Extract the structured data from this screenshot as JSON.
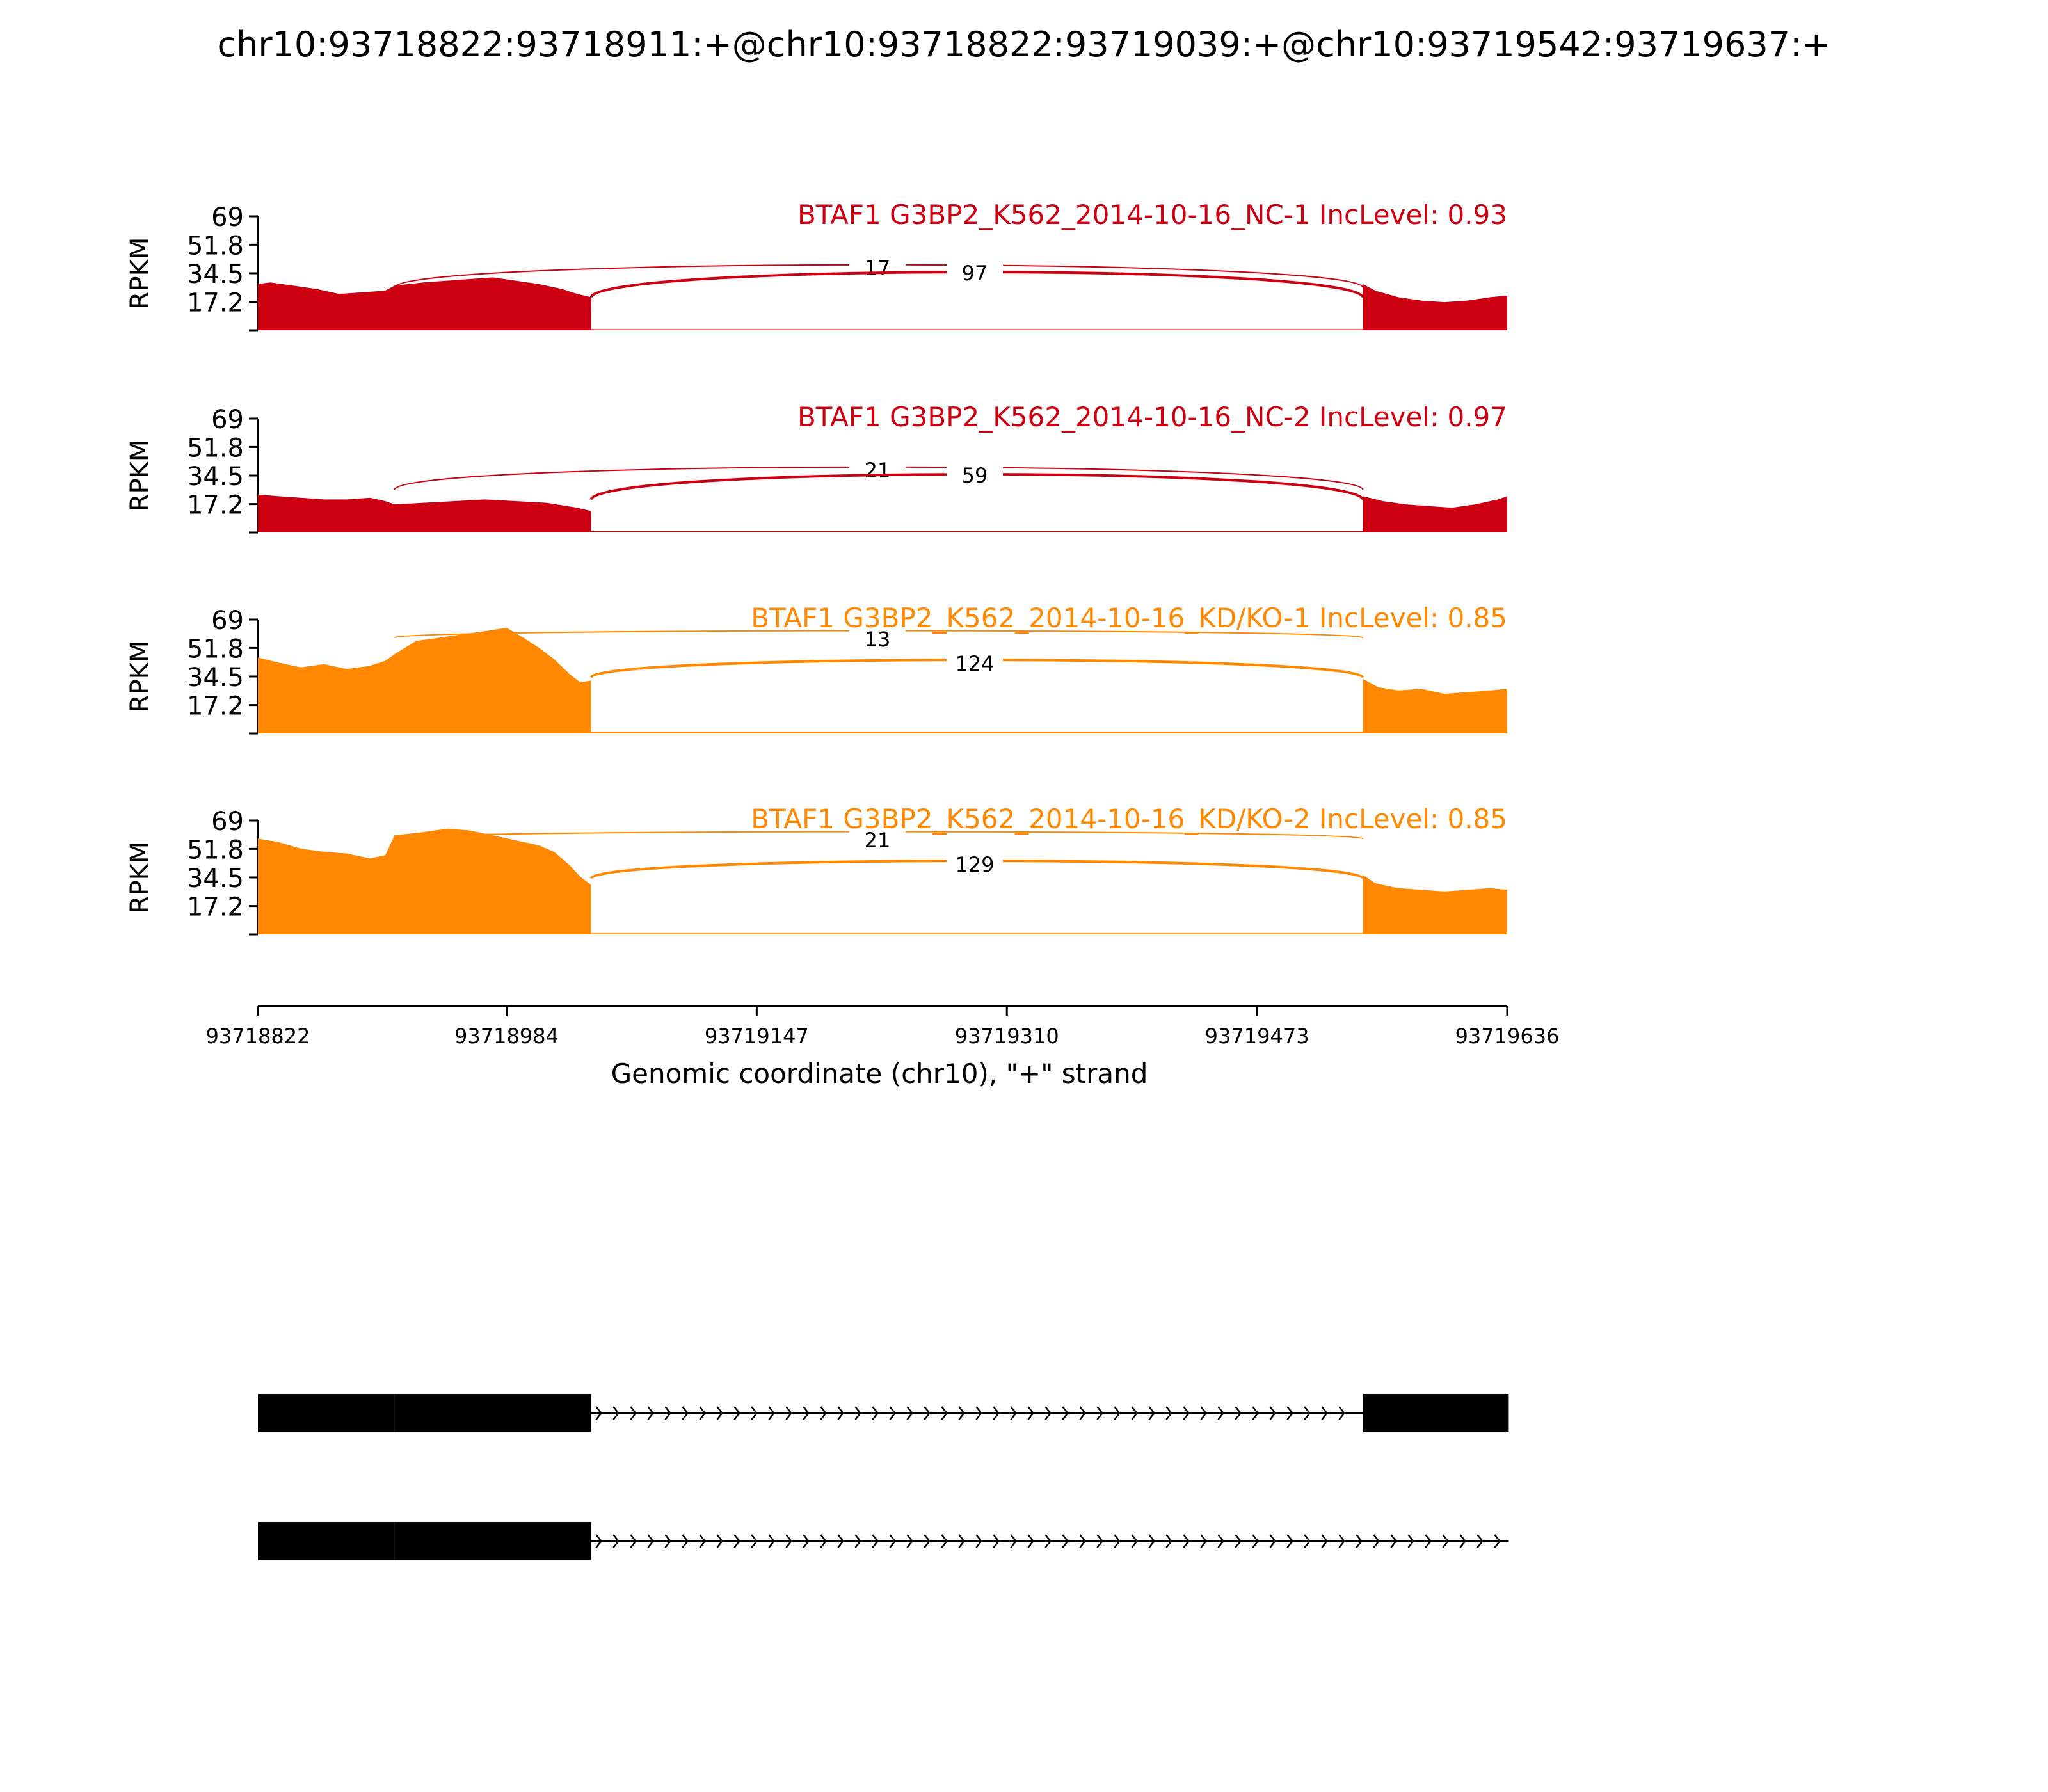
{
  "title": "chr10:93718822:93718911:+@chr10:93718822:93719039:+@chr10:93719542:93719637:+",
  "colors": {
    "nc": "#cc0011",
    "kd": "#ff8800",
    "text_default": "#000000",
    "gene_model": "#000000"
  },
  "chart_data": {
    "type": "area",
    "xlabel": "Genomic coordinate (chr10), \"+\" strand",
    "ylabel": "RPKM",
    "xlim": [
      93718822,
      93719636
    ],
    "xticks": [
      "93718822",
      "93718984",
      "93719147",
      "93719310",
      "93719473",
      "93719636"
    ],
    "ylim": [
      0,
      69
    ],
    "yticks": [
      "69",
      "51.8",
      "34.5",
      "17.2"
    ],
    "grid": false,
    "exons": [
      [
        93718822,
        93718911
      ],
      [
        93718911,
        93719039
      ],
      [
        93719542,
        93719637
      ]
    ],
    "panels": [
      {
        "label": "BTAF1 G3BP2_K562_2014-10-16_NC-1 IncLevel: 0.93",
        "color_key": "nc",
        "junctions": [
          {
            "from": 93718911,
            "to": 93719542,
            "count": 17
          },
          {
            "from": 93719039,
            "to": 93719542,
            "count": 97
          }
        ],
        "coverage": {
          "exon1": [
            [
              93718822,
              28
            ],
            [
              93718830,
              29
            ],
            [
              93718845,
              27
            ],
            [
              93718860,
              25
            ],
            [
              93718875,
              22
            ],
            [
              93718890,
              23
            ],
            [
              93718905,
              24
            ],
            [
              93718911,
              27
            ],
            [
              93718930,
              29
            ],
            [
              93718945,
              30
            ],
            [
              93718960,
              31
            ],
            [
              93718975,
              32
            ],
            [
              93718990,
              30
            ],
            [
              93719005,
              28
            ],
            [
              93719020,
              25
            ],
            [
              93719030,
              22
            ],
            [
              93719039,
              20
            ]
          ],
          "exon3": [
            [
              93719542,
              28
            ],
            [
              93719550,
              24
            ],
            [
              93719565,
              20
            ],
            [
              93719580,
              18
            ],
            [
              93719595,
              17
            ],
            [
              93719610,
              18
            ],
            [
              93719625,
              20
            ],
            [
              93719636,
              21
            ]
          ],
          "intron_level": 0.6
        }
      },
      {
        "label": "BTAF1 G3BP2_K562_2014-10-16_NC-2 IncLevel: 0.97",
        "color_key": "nc",
        "junctions": [
          {
            "from": 93718911,
            "to": 93719542,
            "count": 21
          },
          {
            "from": 93719039,
            "to": 93719542,
            "count": 59
          }
        ],
        "coverage": {
          "exon1": [
            [
              93718822,
              23
            ],
            [
              93718835,
              22
            ],
            [
              93718850,
              21
            ],
            [
              93718865,
              20
            ],
            [
              93718880,
              20
            ],
            [
              93718895,
              21
            ],
            [
              93718905,
              19
            ],
            [
              93718911,
              17
            ],
            [
              93718930,
              18
            ],
            [
              93718950,
              19
            ],
            [
              93718970,
              20
            ],
            [
              93718990,
              19
            ],
            [
              93719010,
              18
            ],
            [
              93719030,
              15
            ],
            [
              93719039,
              13
            ]
          ],
          "exon3": [
            [
              93719542,
              22
            ],
            [
              93719555,
              19
            ],
            [
              93719570,
              17
            ],
            [
              93719585,
              16
            ],
            [
              93719600,
              15
            ],
            [
              93719615,
              17
            ],
            [
              93719630,
              20
            ],
            [
              93719636,
              22
            ]
          ],
          "intron_level": 0.8
        }
      },
      {
        "label": "BTAF1 G3BP2_K562_2014-10-16_KD/KO-1 IncLevel: 0.85",
        "color_key": "kd",
        "junctions": [
          {
            "from": 93718911,
            "to": 93719542,
            "count": 13
          },
          {
            "from": 93719039,
            "to": 93719542,
            "count": 124
          }
        ],
        "coverage": {
          "exon1": [
            [
              93718822,
              46
            ],
            [
              93718835,
              43
            ],
            [
              93718850,
              40
            ],
            [
              93718865,
              42
            ],
            [
              93718880,
              39
            ],
            [
              93718895,
              41
            ],
            [
              93718905,
              44
            ],
            [
              93718911,
              48
            ],
            [
              93718925,
              56
            ],
            [
              93718940,
              58
            ],
            [
              93718955,
              60
            ],
            [
              93718970,
              62
            ],
            [
              93718984,
              64
            ],
            [
              93718995,
              58
            ],
            [
              93719005,
              52
            ],
            [
              93719015,
              45
            ],
            [
              93719025,
              36
            ],
            [
              93719032,
              31
            ],
            [
              93719039,
              32
            ]
          ],
          "exon3": [
            [
              93719542,
              33
            ],
            [
              93719552,
              28
            ],
            [
              93719565,
              26
            ],
            [
              93719580,
              27
            ],
            [
              93719595,
              24
            ],
            [
              93719610,
              25
            ],
            [
              93719625,
              26
            ],
            [
              93719636,
              27
            ]
          ],
          "intron_level": 0.9
        }
      },
      {
        "label": "BTAF1 G3BP2_K562_2014-10-16_KD/KO-2 IncLevel: 0.85",
        "color_key": "kd",
        "junctions": [
          {
            "from": 93718911,
            "to": 93719542,
            "count": 21
          },
          {
            "from": 93719039,
            "to": 93719542,
            "count": 129
          }
        ],
        "coverage": {
          "exon1": [
            [
              93718822,
              58
            ],
            [
              93718835,
              56
            ],
            [
              93718850,
              52
            ],
            [
              93718865,
              50
            ],
            [
              93718880,
              49
            ],
            [
              93718895,
              46
            ],
            [
              93718905,
              48
            ],
            [
              93718911,
              60
            ],
            [
              93718930,
              62
            ],
            [
              93718945,
              64
            ],
            [
              93718960,
              63
            ],
            [
              93718975,
              60
            ],
            [
              93718990,
              57
            ],
            [
              93719005,
              54
            ],
            [
              93719015,
              50
            ],
            [
              93719025,
              42
            ],
            [
              93719032,
              35
            ],
            [
              93719039,
              30
            ]
          ],
          "exon3": [
            [
              93719542,
              36
            ],
            [
              93719550,
              31
            ],
            [
              93719565,
              28
            ],
            [
              93719580,
              27
            ],
            [
              93719595,
              26
            ],
            [
              93719610,
              27
            ],
            [
              93719625,
              28
            ],
            [
              93719636,
              27
            ]
          ],
          "intron_level": 0.7
        }
      }
    ],
    "gene_models": [
      {
        "exons": [
          [
            93718822,
            93718911
          ],
          [
            93718911,
            93719039
          ],
          [
            93719542,
            93719637
          ]
        ],
        "intron": [
          93719039,
          93719542
        ]
      },
      {
        "exons": [
          [
            93718822,
            93718911
          ],
          [
            93718911,
            93719039
          ]
        ],
        "intron": [
          93719039,
          93719637
        ]
      }
    ]
  }
}
